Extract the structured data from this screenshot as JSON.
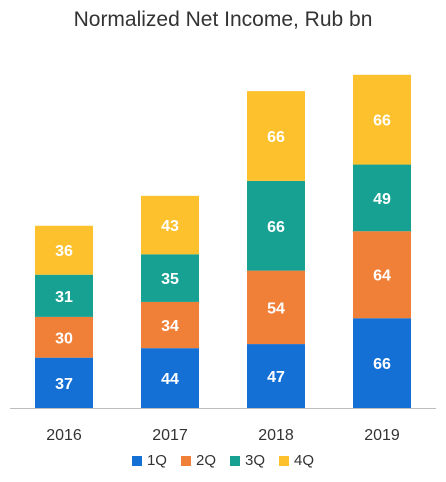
{
  "chart_data": {
    "type": "bar",
    "stacked": true,
    "title": "Normalized Net Income, Rub bn",
    "xlabel": "",
    "ylabel": "",
    "categories": [
      "2016",
      "2017",
      "2018",
      "2019"
    ],
    "series": [
      {
        "name": "1Q",
        "color": "#1570d6",
        "values": [
          37,
          44,
          47,
          66
        ]
      },
      {
        "name": "2Q",
        "color": "#f07f38",
        "values": [
          30,
          34,
          54,
          64
        ]
      },
      {
        "name": "3Q",
        "color": "#17a193",
        "values": [
          31,
          35,
          66,
          49
        ]
      },
      {
        "name": "4Q",
        "color": "#fcc12d",
        "values": [
          36,
          43,
          66,
          66
        ]
      }
    ],
    "ylim": [
      0,
      250
    ],
    "grid": false,
    "legend": "bottom",
    "data_labels": true
  }
}
